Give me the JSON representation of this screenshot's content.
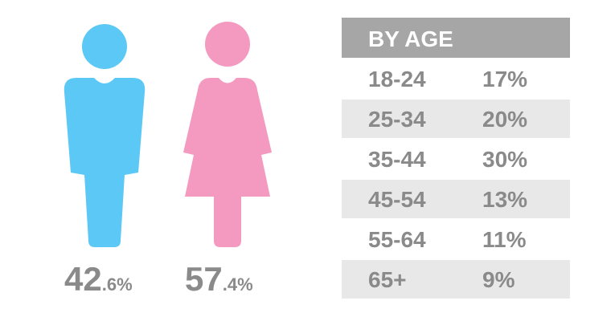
{
  "gender": [
    {
      "major": "42",
      "minor": ".6%",
      "color": "#5bc8f5"
    },
    {
      "major": "57",
      "minor": ".4%",
      "color": "#f49ac1"
    }
  ],
  "table": {
    "header": "BY AGE",
    "rows": [
      [
        "18-24",
        "17%"
      ],
      [
        "25-34",
        "20%"
      ],
      [
        "35-44",
        "30%"
      ],
      [
        "45-54",
        "13%"
      ],
      [
        "55-64",
        "11%"
      ],
      [
        "65+",
        "9%"
      ]
    ]
  }
}
